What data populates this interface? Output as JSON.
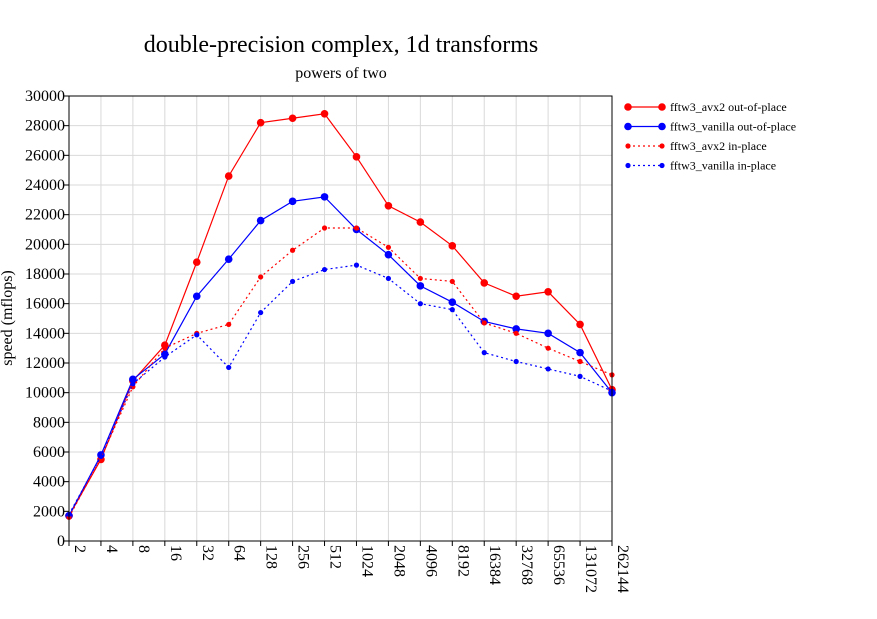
{
  "chart_data": {
    "type": "line",
    "title": "double-precision complex, 1d transforms",
    "subtitle": "powers of two",
    "xlabel": "",
    "ylabel": "speed (mflops)",
    "categories": [
      "2",
      "4",
      "8",
      "16",
      "32",
      "64",
      "128",
      "256",
      "512",
      "1024",
      "2048",
      "4096",
      "8192",
      "16384",
      "32768",
      "65536",
      "131072",
      "262144"
    ],
    "ylim": [
      0,
      30000
    ],
    "yticks": [
      0,
      2000,
      4000,
      6000,
      8000,
      10000,
      12000,
      14000,
      16000,
      18000,
      20000,
      22000,
      24000,
      26000,
      28000,
      30000
    ],
    "grid": true,
    "legend_position": "right",
    "series": [
      {
        "name": "fftw3_avx2 out-of-place",
        "color": "#ff0000",
        "line_style": "solid",
        "values": [
          1700,
          5500,
          10800,
          13200,
          18800,
          24600,
          28200,
          28500,
          28800,
          25900,
          22600,
          21500,
          19900,
          17400,
          16500,
          16800,
          14600,
          10200
        ]
      },
      {
        "name": "fftw3_vanilla out-of-place",
        "color": "#0000ff",
        "line_style": "solid",
        "values": [
          1700,
          5800,
          10900,
          12600,
          16500,
          19000,
          21600,
          22900,
          23200,
          21000,
          19300,
          17200,
          16100,
          14800,
          14300,
          14000,
          12700,
          10000
        ]
      },
      {
        "name": "fftw3_avx2 in-place",
        "color": "#ff0000",
        "line_style": "dotted",
        "values": [
          1600,
          5600,
          10400,
          13000,
          14000,
          14600,
          17800,
          19600,
          21100,
          21100,
          19800,
          17700,
          17500,
          14700,
          14000,
          13000,
          12100,
          11200
        ]
      },
      {
        "name": "fftw3_vanilla in-place",
        "color": "#0000ff",
        "line_style": "dotted",
        "values": [
          1800,
          5700,
          10600,
          12400,
          13900,
          11700,
          15400,
          17500,
          18300,
          18600,
          17700,
          16000,
          15600,
          12700,
          12100,
          11600,
          11100,
          10100
        ]
      }
    ]
  }
}
